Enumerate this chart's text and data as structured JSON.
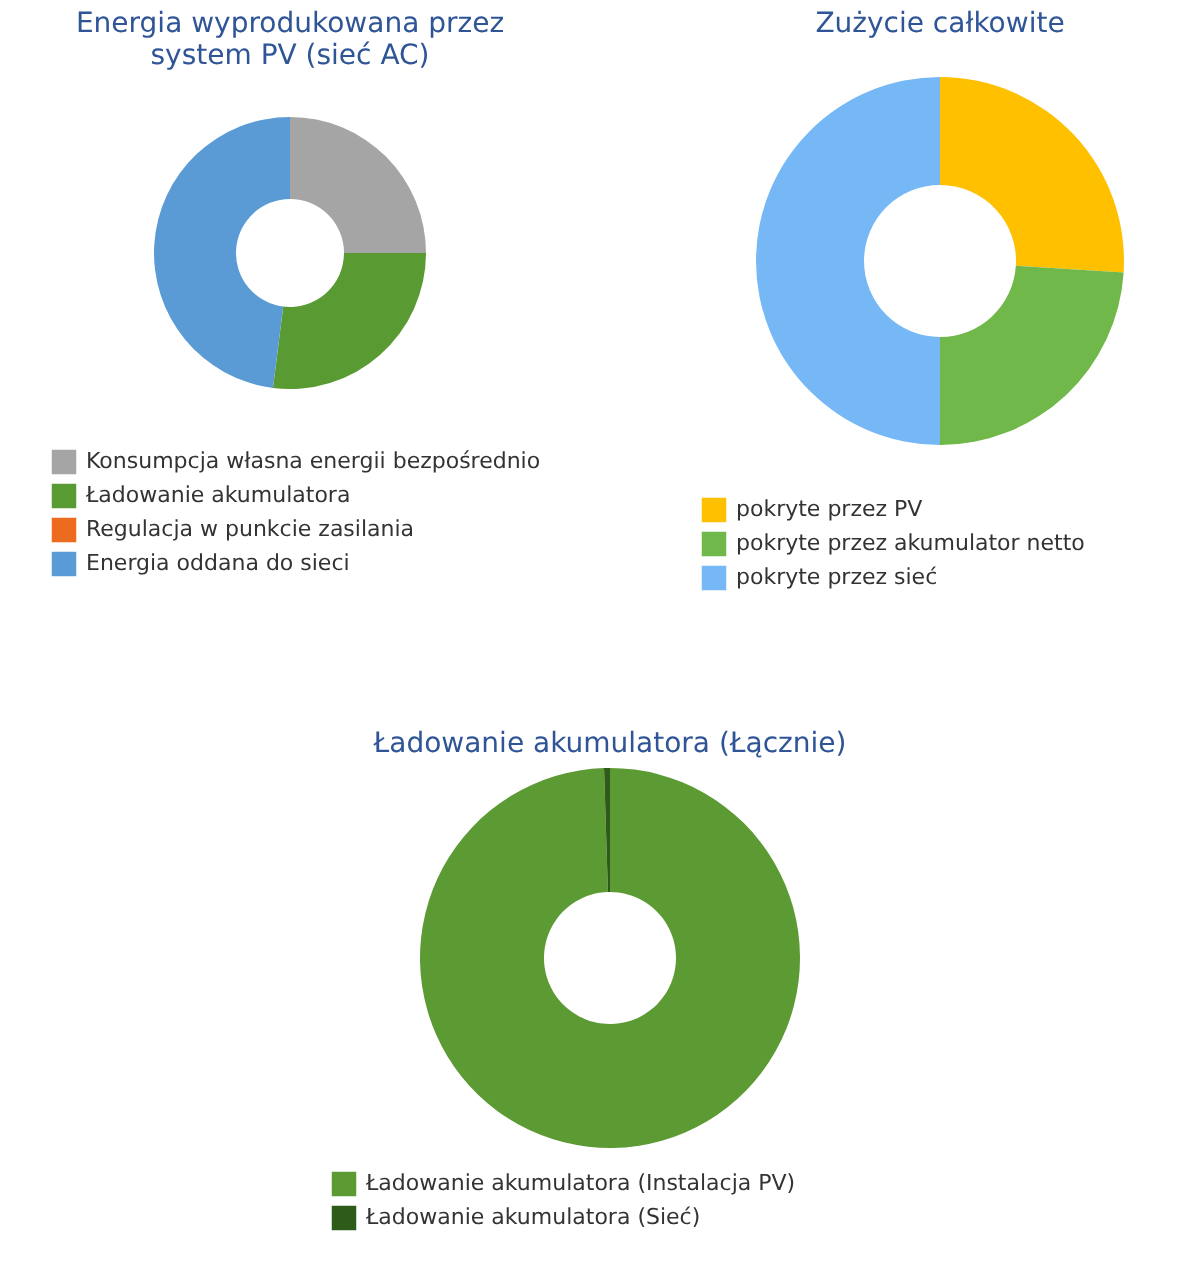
{
  "chart_data": [
    {
      "type": "donut",
      "title": "Energia wyprodukowana przez system PV (sieć AC)",
      "categories": [
        "Konsumpcja własna energii bezpośrednio",
        "Ładowanie akumulatora",
        "Regulacja w punkcie zasilania",
        "Energia oddana do sieci"
      ],
      "values": [
        25,
        27,
        0,
        48
      ],
      "colors": [
        "#a5a5a5",
        "#5a9a32",
        "#ed6b1f",
        "#5b9bd5"
      ],
      "legend": "bottom"
    },
    {
      "type": "donut",
      "title": "Zużycie całkowite",
      "categories": [
        "pokryte przez PV",
        "pokryte przez akumulator netto",
        "pokryte przez sieć"
      ],
      "values": [
        26,
        24,
        50
      ],
      "colors": [
        "#ffc000",
        "#70b84a",
        "#75b8f5"
      ],
      "legend": "bottom"
    },
    {
      "type": "donut",
      "title": "Ładowanie akumulatora (Łącznie)",
      "categories": [
        "Ładowanie akumulatora (Instalacja PV)",
        "Ładowanie akumulatora (Sieć)"
      ],
      "values": [
        99.5,
        0.5
      ],
      "colors": [
        "#5c9a34",
        "#2e5a1a"
      ],
      "legend": "bottom"
    }
  ]
}
